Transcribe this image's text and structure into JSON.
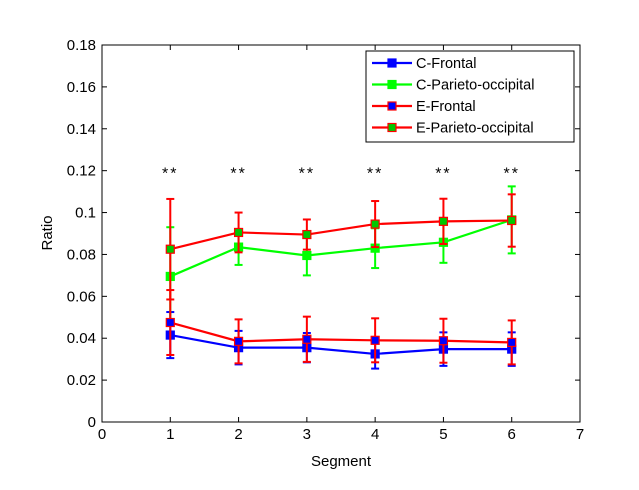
{
  "chart_data": {
    "type": "line",
    "title": "",
    "xlabel": "Segment",
    "ylabel": "Ratio",
    "xlim": [
      0,
      7
    ],
    "ylim": [
      0,
      0.18
    ],
    "xticks": [
      "0",
      "1",
      "2",
      "3",
      "4",
      "5",
      "6",
      "7"
    ],
    "yticks": [
      "0",
      "0.02",
      "0.04",
      "0.06",
      "0.08",
      "0.1",
      "0.12",
      "0.14",
      "0.16",
      "0.18"
    ],
    "x": [
      1,
      2,
      3,
      4,
      5,
      6
    ],
    "grid": false,
    "legend_position": "top-right",
    "series": [
      {
        "name": "C-Frontal",
        "line_color": "#0000ff",
        "marker_color": "#0000ff",
        "values": [
          0.0415,
          0.0355,
          0.0355,
          0.0325,
          0.0348,
          0.0348
        ],
        "error": [
          0.011,
          0.008,
          0.007,
          0.007,
          0.008,
          0.008
        ]
      },
      {
        "name": "C-Parieto-occipital",
        "line_color": "#00ff00",
        "marker_color": "#00ff00",
        "values": [
          0.0695,
          0.0835,
          0.0795,
          0.083,
          0.0858,
          0.0965
        ],
        "error": [
          0.0235,
          0.0085,
          0.0095,
          0.0095,
          0.0098,
          0.016
        ]
      },
      {
        "name": "E-Frontal",
        "line_color": "#ff0000",
        "marker_color": "#0000ff",
        "values": [
          0.0475,
          0.0385,
          0.0395,
          0.039,
          0.0388,
          0.038
        ],
        "error": [
          0.0155,
          0.0105,
          0.0108,
          0.0105,
          0.0105,
          0.0105
        ]
      },
      {
        "name": "E-Parieto-occipital",
        "line_color": "#ff0000",
        "marker_color": "#00c800",
        "values": [
          0.0825,
          0.0905,
          0.0895,
          0.0945,
          0.0958,
          0.0962
        ],
        "error": [
          0.024,
          0.0095,
          0.0072,
          0.011,
          0.0108,
          0.0125
        ]
      }
    ],
    "annotations": [
      {
        "x": 1,
        "text": "**"
      },
      {
        "x": 2,
        "text": "**"
      },
      {
        "x": 3,
        "text": "**"
      },
      {
        "x": 4,
        "text": "**"
      },
      {
        "x": 5,
        "text": "**"
      },
      {
        "x": 6,
        "text": "**"
      }
    ],
    "annotation_y": 0.12
  }
}
